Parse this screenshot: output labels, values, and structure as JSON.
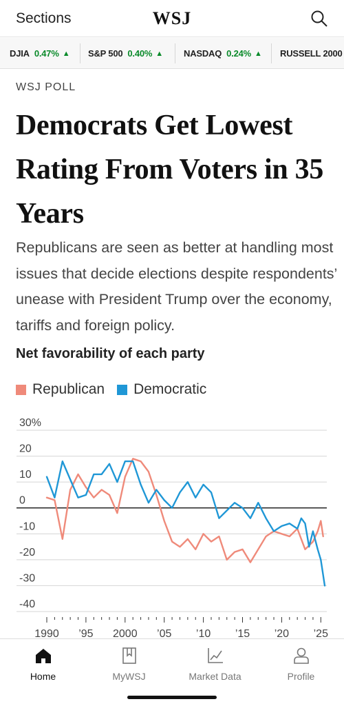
{
  "header": {
    "sections_label": "Sections",
    "logo": "WSJ"
  },
  "ticker": [
    {
      "name": "DJIA",
      "change": "0.47%",
      "direction": "up"
    },
    {
      "name": "S&P 500",
      "change": "0.40%",
      "direction": "up"
    },
    {
      "name": "NASDAQ",
      "change": "0.24%",
      "direction": "up"
    },
    {
      "name": "RUSSELL 2000",
      "change": "",
      "direction": ""
    }
  ],
  "article": {
    "kicker": "WSJ POLL",
    "headline": "Democrats Get Lowest Rating From Voters in 35 Years",
    "dek": "Republicans are seen as better at handling most issues that decide elections despite respondents’ unease with President Trump over the economy, tariffs and foreign policy."
  },
  "chart_data": {
    "type": "line",
    "title": "Net favorability of each party",
    "ylim": [
      -40,
      30
    ],
    "yticks": [
      "30%",
      "20",
      "10",
      "0",
      "-10",
      "-20",
      "-30",
      "-40"
    ],
    "xlim": [
      1990,
      2025.5
    ],
    "xticks": [
      "1990",
      "’95",
      "2000",
      "’05",
      "’10",
      "’15",
      "’20",
      "’25"
    ],
    "colors": {
      "Republican": "#ef8a7a",
      "Democratic": "#1f97d6"
    },
    "series": [
      {
        "name": "Republican",
        "points": [
          [
            1990,
            4
          ],
          [
            1991,
            3
          ],
          [
            1992,
            -12
          ],
          [
            1993,
            7
          ],
          [
            1994,
            13
          ],
          [
            1995,
            8
          ],
          [
            1996,
            4
          ],
          [
            1997,
            7
          ],
          [
            1998,
            5
          ],
          [
            1999,
            -2
          ],
          [
            2000,
            12
          ],
          [
            2001,
            19
          ],
          [
            2002,
            18
          ],
          [
            2003,
            14
          ],
          [
            2004,
            5
          ],
          [
            2005,
            -5
          ],
          [
            2006,
            -13
          ],
          [
            2007,
            -15
          ],
          [
            2008,
            -12
          ],
          [
            2009,
            -16
          ],
          [
            2010,
            -10
          ],
          [
            2011,
            -13
          ],
          [
            2012,
            -11
          ],
          [
            2013,
            -20
          ],
          [
            2014,
            -17
          ],
          [
            2015,
            -16
          ],
          [
            2016,
            -21
          ],
          [
            2017,
            -16
          ],
          [
            2018,
            -11
          ],
          [
            2019,
            -9
          ],
          [
            2020,
            -10
          ],
          [
            2021,
            -11
          ],
          [
            2022,
            -8
          ],
          [
            2023,
            -16
          ],
          [
            2024,
            -13
          ],
          [
            2024.6,
            -9
          ],
          [
            2025,
            -5
          ],
          [
            2025.3,
            -11
          ]
        ]
      },
      {
        "name": "Democratic",
        "points": [
          [
            1990,
            12
          ],
          [
            1991,
            4
          ],
          [
            1992,
            18
          ],
          [
            1993,
            11
          ],
          [
            1994,
            4
          ],
          [
            1995,
            5
          ],
          [
            1996,
            13
          ],
          [
            1997,
            13
          ],
          [
            1998,
            17
          ],
          [
            1999,
            10
          ],
          [
            2000,
            18
          ],
          [
            2001,
            18
          ],
          [
            2002,
            9
          ],
          [
            2003,
            2
          ],
          [
            2004,
            7
          ],
          [
            2005,
            3
          ],
          [
            2006,
            0
          ],
          [
            2007,
            6
          ],
          [
            2008,
            10
          ],
          [
            2009,
            4
          ],
          [
            2010,
            9
          ],
          [
            2011,
            6
          ],
          [
            2012,
            -4
          ],
          [
            2013,
            -1
          ],
          [
            2014,
            2
          ],
          [
            2015,
            0
          ],
          [
            2016,
            -4
          ],
          [
            2017,
            2
          ],
          [
            2018,
            -4
          ],
          [
            2019,
            -9
          ],
          [
            2020,
            -7
          ],
          [
            2021,
            -6
          ],
          [
            2022,
            -8
          ],
          [
            2022.5,
            -4
          ],
          [
            2023,
            -6
          ],
          [
            2023.5,
            -15
          ],
          [
            2024,
            -9
          ],
          [
            2024.6,
            -16
          ],
          [
            2025,
            -20
          ],
          [
            2025.2,
            -24
          ],
          [
            2025.5,
            -30
          ]
        ]
      }
    ]
  },
  "nav": [
    {
      "label": "Home",
      "icon": "home-icon",
      "active": true
    },
    {
      "label": "MyWSJ",
      "icon": "bookmark-icon",
      "active": false
    },
    {
      "label": "Market Data",
      "icon": "chart-icon",
      "active": false
    },
    {
      "label": "Profile",
      "icon": "profile-icon",
      "active": false
    }
  ]
}
